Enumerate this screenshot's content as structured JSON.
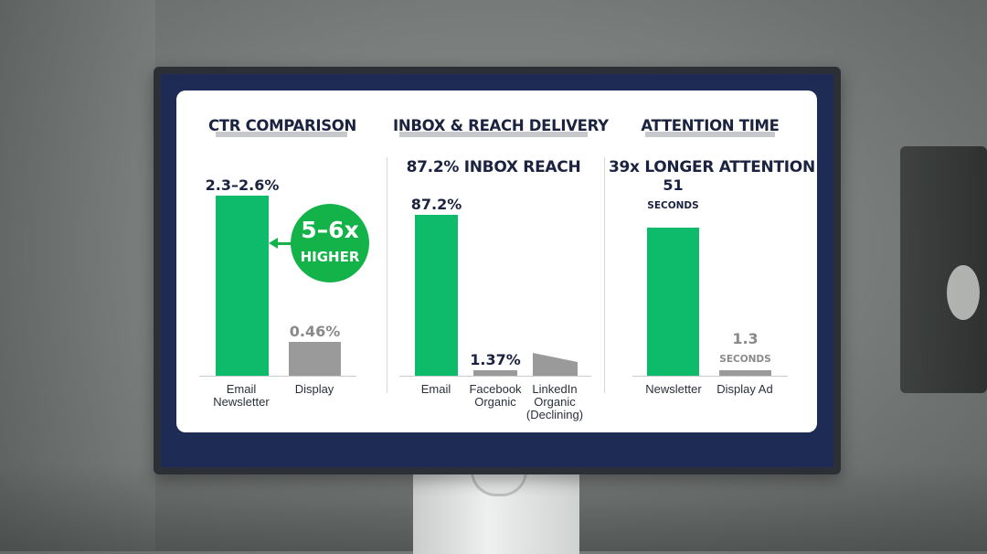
{
  "colors": {
    "email_green": "#0dbb6b",
    "badge_green": "#13b34a",
    "other_gray": "#9a9a9a",
    "text_navy": "#1b2340",
    "screen_navy": "#1e2c55"
  },
  "chart_data": [
    {
      "type": "bar",
      "title": "CTR COMPARISON",
      "categories": [
        "Email Newsletter",
        "Display"
      ],
      "values": [
        2.45,
        0.46
      ],
      "value_labels": [
        "2.3–2.6%",
        "0.46%"
      ],
      "annotation": {
        "primary": "5–6x",
        "secondary": "HIGHER"
      }
    },
    {
      "type": "bar",
      "title": "INBOX & REACH DELIVERY",
      "subtitle": "87.2% INBOX REACH",
      "categories": [
        "Email",
        "Facebook Organic",
        "LinkedIn Organic (Declining)"
      ],
      "values": [
        87.2,
        1.37,
        null
      ],
      "value_labels": [
        "87.2%",
        "1.37%",
        ""
      ]
    },
    {
      "type": "bar",
      "title": "ATTENTION TIME",
      "subtitle": "39x LONGER ATTENTION",
      "categories": [
        "Newsletter",
        "Display Ad"
      ],
      "values": [
        51,
        1.3
      ],
      "value_labels": [
        "51",
        "1.3"
      ],
      "units": [
        "SECONDS",
        "SECONDS"
      ]
    }
  ]
}
